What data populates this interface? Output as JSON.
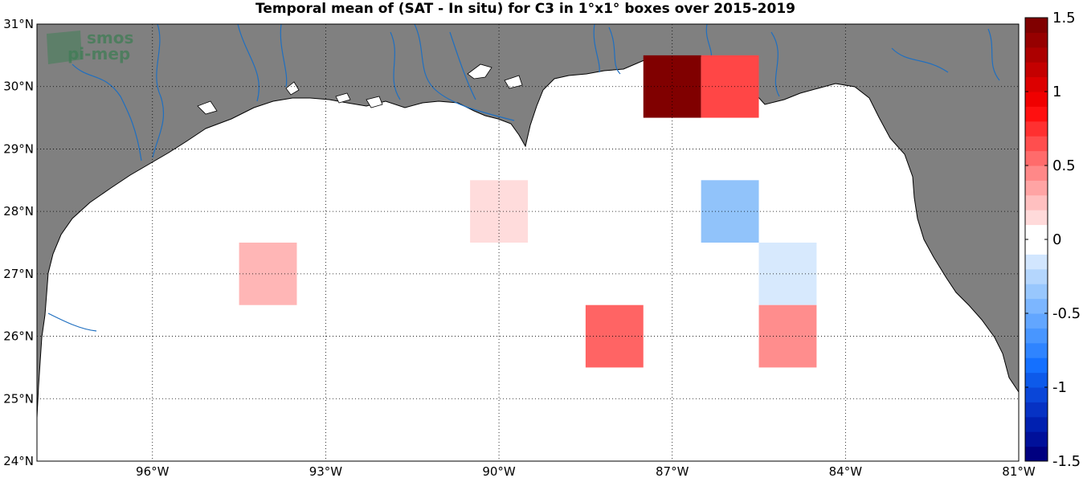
{
  "title": "Temporal mean of (SAT - In situ) for C3 in 1°x1° boxes over 2015-2019",
  "logo": {
    "line1": "smos",
    "line2": "pi-mep"
  },
  "map": {
    "lon_range": [
      -98,
      -81
    ],
    "lat_range": [
      24,
      31
    ],
    "x_ticks": [
      {
        "lon": -96,
        "label": "96°W"
      },
      {
        "lon": -93,
        "label": "93°W"
      },
      {
        "lon": -90,
        "label": "90°W"
      },
      {
        "lon": -87,
        "label": "87°W"
      },
      {
        "lon": -84,
        "label": "84°W"
      },
      {
        "lon": -81,
        "label": "81°W"
      }
    ],
    "y_ticks": [
      {
        "lat": 31,
        "label": "31°N"
      },
      {
        "lat": 30,
        "label": "30°N"
      },
      {
        "lat": 29,
        "label": "29°N"
      },
      {
        "lat": 28,
        "label": "28°N"
      },
      {
        "lat": 27,
        "label": "27°N"
      },
      {
        "lat": 26,
        "label": "26°N"
      },
      {
        "lat": 25,
        "label": "25°N"
      },
      {
        "lat": 24,
        "label": "24°N"
      }
    ],
    "colors": {
      "land": "#808080",
      "ocean": "#ffffff",
      "rivers": "#1f6fc0",
      "grid": "#000000"
    }
  },
  "boxes": [
    {
      "lon": -87,
      "lat": 30,
      "value": 1.5,
      "color": "#800000"
    },
    {
      "lon": -86,
      "lat": 30,
      "value": 0.8,
      "color": "#ff4646"
    },
    {
      "lon": -90,
      "lat": 28,
      "value": 0.15,
      "color": "#ffdcdc"
    },
    {
      "lon": -86,
      "lat": 28,
      "value": -0.45,
      "color": "#91c3fa"
    },
    {
      "lon": -94,
      "lat": 27,
      "value": 0.3,
      "color": "#ffb6b6"
    },
    {
      "lon": -85,
      "lat": 27,
      "value": -0.12,
      "color": "#d7e9fd"
    },
    {
      "lon": -88,
      "lat": 26,
      "value": 0.6,
      "color": "#ff6464"
    },
    {
      "lon": -85,
      "lat": 26,
      "value": 0.45,
      "color": "#ff8d8d"
    }
  ],
  "colorbar": {
    "min": -1.5,
    "max": 1.5,
    "ticks": [
      {
        "value": 1.5,
        "label": "1.5"
      },
      {
        "value": 1,
        "label": "1"
      },
      {
        "value": 0.5,
        "label": "0.5"
      },
      {
        "value": 0,
        "label": "0"
      },
      {
        "value": -0.5,
        "label": "-0.5"
      },
      {
        "value": -1,
        "label": "-1"
      },
      {
        "value": -1.5,
        "label": "-1.5"
      }
    ],
    "colors": [
      "#000080",
      "#00109a",
      "#0020b0",
      "#0632c4",
      "#0a46d8",
      "#0d5aea",
      "#1470ff",
      "#2f84ff",
      "#4896ff",
      "#62a6ff",
      "#7cb6ff",
      "#98c7fd",
      "#b4d6fd",
      "#d2e6fe",
      "#ffffff",
      "#ffffff",
      "#ffdada",
      "#ffc0c0",
      "#ffa4a4",
      "#ff8888",
      "#ff6b6b",
      "#ff4e4e",
      "#ff3030",
      "#ff1010",
      "#f00000",
      "#dc0000",
      "#c40000",
      "#ac0000",
      "#960000",
      "#800000"
    ]
  }
}
